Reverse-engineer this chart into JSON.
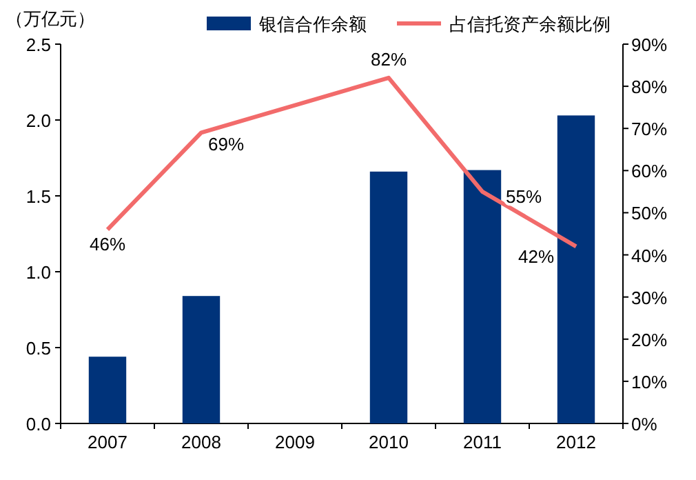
{
  "chart_data": {
    "type": "bar",
    "ylabel": "（万亿元）",
    "categories": [
      "2007",
      "2008",
      "2009",
      "2010",
      "2011",
      "2012"
    ],
    "series": [
      {
        "name": "银信合作余额",
        "color": "#00337a",
        "values": [
          0.44,
          0.84,
          null,
          1.66,
          1.67,
          2.03
        ]
      },
      {
        "name": "占信托资产余额比例",
        "type": "line",
        "axis": "y2",
        "color": "#f26b6b",
        "values": [
          46,
          69,
          null,
          82,
          55,
          42
        ],
        "value_labels": [
          "46%",
          "69%",
          null,
          "82%",
          "55%",
          "42%"
        ]
      }
    ],
    "ylim": [
      0,
      2.5
    ],
    "yticks": [
      {
        "value": 0,
        "label": "0.0"
      },
      0.5,
      {
        "value": 1,
        "label": "1.0"
      },
      1.5,
      {
        "value": 2,
        "label": "2.0"
      },
      2.5
    ],
    "y2lim": [
      0,
      90
    ],
    "y2ticks": [
      {
        "value": 0,
        "label": "0%"
      },
      {
        "value": 10,
        "label": "10%"
      },
      {
        "value": 20,
        "label": "20%"
      },
      {
        "value": 30,
        "label": "30%"
      },
      {
        "value": 40,
        "label": "40%"
      },
      {
        "value": 50,
        "label": "50%"
      },
      {
        "value": 60,
        "label": "60%"
      },
      {
        "value": 70,
        "label": "70%"
      },
      {
        "value": 80,
        "label": "80%"
      },
      {
        "value": 90,
        "label": "90%"
      }
    ],
    "legend": "top",
    "grid": false,
    "marker": "none"
  }
}
